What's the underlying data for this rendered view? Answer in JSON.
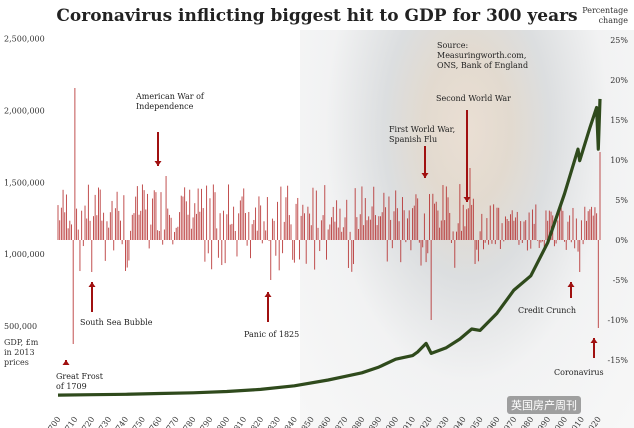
{
  "title": "Coronavirus inflicting biggest hit to GDP for 300 years",
  "source": "Source: Measuringworth.com, ONS, Bank of England",
  "left_axis": {
    "label": "GDP, £m in 2013 prices",
    "ticks": [
      "2,500,000",
      "2,000,000",
      "1,500,000",
      "1,000,000",
      "500,000"
    ]
  },
  "right_axis": {
    "label": "Percentage change",
    "ticks": [
      "25%",
      "20%",
      "15%",
      "10%",
      "5%",
      "0%",
      "-5%",
      "-10%",
      "-15%"
    ]
  },
  "x_ticks": [
    "1700",
    "1710",
    "1720",
    "1730",
    "1740",
    "1750",
    "1760",
    "1770",
    "1780",
    "1790",
    "1800",
    "1810",
    "1820",
    "1830",
    "1840",
    "1850",
    "1860",
    "1870",
    "1880",
    "1890",
    "1900",
    "1910",
    "1920",
    "1930",
    "1940",
    "1950",
    "1960",
    "1970",
    "1980",
    "1990",
    "2000",
    "2010",
    "2020"
  ],
  "annotations": {
    "great_frost": "Great Frost of 1709",
    "south_sea": "South Sea Bubble",
    "american_war": "American War of Independence",
    "panic_1825": "Panic of 1825",
    "ww1": "First World War, Spanish Flu",
    "ww2": "Second World War",
    "credit_crunch": "Credit Crunch",
    "coronavirus": "Coronavirus"
  },
  "watermark": "英国房产周刊",
  "colors": {
    "gdp_line": "#2f4a1c",
    "bars": "#b22222",
    "arrows": "#a01010"
  },
  "chart_data": {
    "type": "line",
    "x_range": [
      1700,
      2021
    ],
    "ylim_left": [
      0,
      2500000
    ],
    "ylim_right": [
      -15,
      25
    ],
    "series": [
      {
        "name": "GDP, £m in 2013 prices",
        "axis": "left",
        "x": [
          1700,
          1720,
          1740,
          1760,
          1780,
          1800,
          1820,
          1840,
          1860,
          1870,
          1880,
          1890,
          1900,
          1910,
          1913,
          1918,
          1921,
          1930,
          1938,
          1945,
          1950,
          1960,
          1970,
          1980,
          1990,
          2000,
          2008,
          2009,
          2015,
          2019,
          2020,
          2021
        ],
        "values": [
          20000,
          23000,
          26000,
          31000,
          36000,
          45000,
          60000,
          85000,
          125000,
          150000,
          175000,
          215000,
          270000,
          295000,
          320000,
          380000,
          310000,
          350000,
          410000,
          480000,
          470000,
          590000,
          750000,
          850000,
          1080000,
          1420000,
          1730000,
          1650000,
          1880000,
          2020000,
          1730000,
          2080000
        ]
      },
      {
        "name": "Percentage change",
        "type": "bar",
        "axis": "right",
        "x_range": [
          1700,
          2021
        ],
        "notable_values": {
          "1709": -13,
          "1710": 19,
          "1720": -4,
          "1764": 8,
          "1826": -5,
          "1921": -10,
          "1944": 9,
          "1947": -3,
          "2009": -4,
          "2020": -11,
          "2021": 11
        }
      }
    ]
  }
}
